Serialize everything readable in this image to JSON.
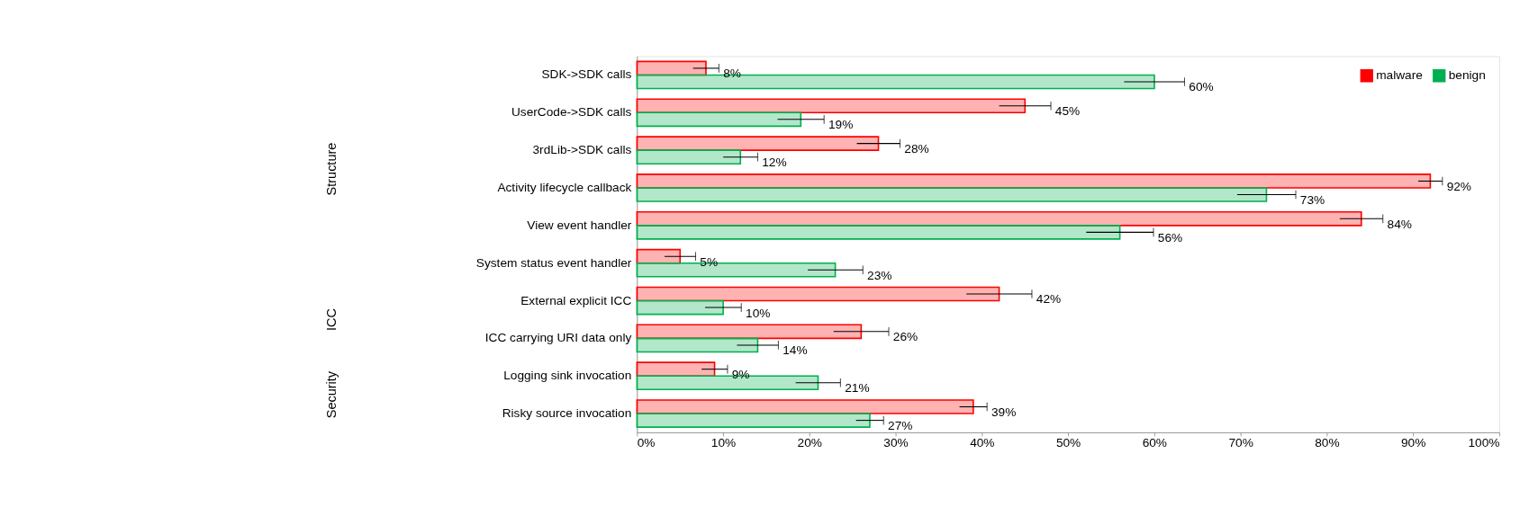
{
  "chart_data": {
    "type": "bar",
    "orientation": "horizontal",
    "categories": [
      "SDK->SDK calls",
      "UserCode->SDK calls",
      "3rdLib->SDK calls",
      "Activity lifecycle callback",
      "View event handler",
      "System status event handler",
      "External explicit ICC",
      "ICC carrying URI data only",
      "Logging sink invocation",
      "Risky source invocation"
    ],
    "series": [
      {
        "name": "malware",
        "color": "#ff0000",
        "values": [
          8,
          45,
          28,
          92,
          84,
          5,
          42,
          26,
          9,
          39
        ],
        "errors": [
          1.5,
          3,
          2.5,
          1.4,
          2.5,
          1.8,
          3.8,
          3.2,
          1.5,
          1.6
        ],
        "value_labels": [
          "8%",
          "45%",
          "28%",
          "92%",
          "84%",
          "5%",
          "42%",
          "26%",
          "9%",
          "39%"
        ]
      },
      {
        "name": "benign",
        "color": "#00b050",
        "values": [
          60,
          19,
          12,
          73,
          56,
          23,
          10,
          14,
          21,
          27
        ],
        "errors": [
          3.5,
          2.7,
          2,
          3.4,
          3.9,
          3.2,
          2.1,
          2.4,
          2.6,
          1.6
        ],
        "value_labels": [
          "60%",
          "19%",
          "12%",
          "73%",
          "56%",
          "23%",
          "10%",
          "14%",
          "21%",
          "27%"
        ]
      }
    ],
    "xlim": [
      0,
      100
    ],
    "xticks": [
      {
        "value": 0,
        "label": "0%"
      },
      {
        "value": 10,
        "label": "10%"
      },
      {
        "value": 20,
        "label": "20%"
      },
      {
        "value": 30,
        "label": "30%"
      },
      {
        "value": 40,
        "label": "40%"
      },
      {
        "value": 50,
        "label": "50%"
      },
      {
        "value": 60,
        "label": "60%"
      },
      {
        "value": 70,
        "label": "70%"
      },
      {
        "value": 80,
        "label": "80%"
      },
      {
        "value": 90,
        "label": "90%"
      },
      {
        "value": 100,
        "label": "100%"
      }
    ],
    "grid": false,
    "legend": "top right",
    "annotations": [
      "Structure",
      "ICC",
      "Security"
    ]
  }
}
